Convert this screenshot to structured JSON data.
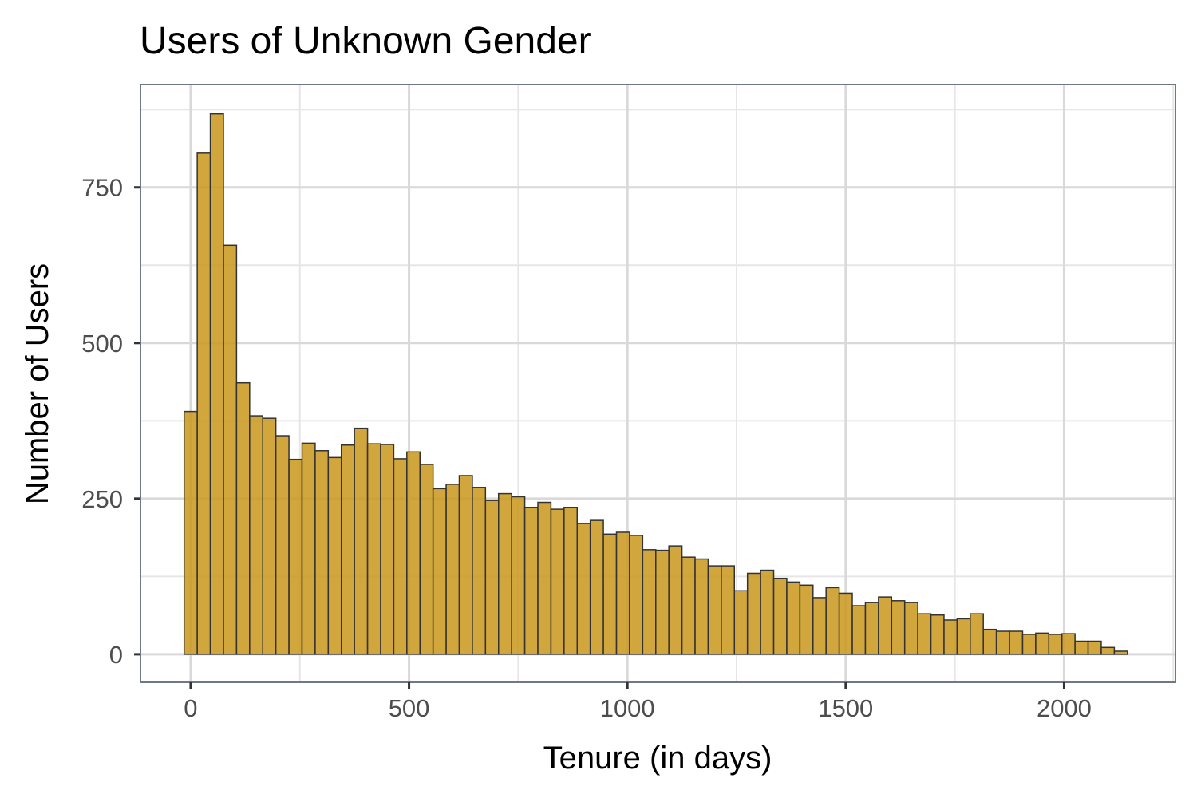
{
  "chart_data": {
    "type": "bar",
    "title": "Users of Unknown Gender",
    "xlabel": "Tenure (in days)",
    "ylabel": "Number of Users",
    "bin_width": 30,
    "x_start": -15,
    "xlim": [
      -115,
      2255
    ],
    "ylim": [
      -45,
      915
    ],
    "x_ticks": [
      0,
      500,
      1000,
      1500,
      2000
    ],
    "y_ticks": [
      0,
      250,
      500,
      750
    ],
    "grid": true,
    "bar_color": "#c9961a",
    "bar_outline_color": "#333333",
    "values": [
      390,
      805,
      868,
      657,
      436,
      383,
      379,
      351,
      313,
      339,
      327,
      316,
      336,
      363,
      338,
      337,
      314,
      325,
      305,
      266,
      273,
      287,
      268,
      247,
      258,
      253,
      236,
      244,
      233,
      236,
      210,
      215,
      193,
      196,
      191,
      168,
      167,
      174,
      156,
      153,
      142,
      142,
      102,
      130,
      135,
      122,
      116,
      111,
      91,
      107,
      98,
      78,
      83,
      92,
      86,
      83,
      65,
      63,
      55,
      57,
      65,
      40,
      37,
      37,
      32,
      34,
      32,
      33,
      21,
      21,
      11,
      5
    ]
  }
}
